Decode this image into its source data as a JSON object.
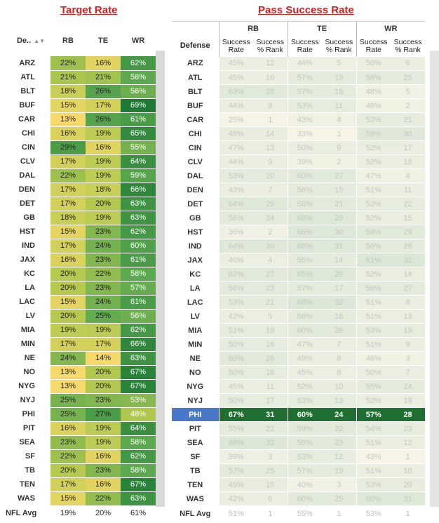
{
  "titles": {
    "target": "Target Rate",
    "pass": "Pass Success Rate"
  },
  "left_headers": {
    "defense": "De..",
    "rb": "RB",
    "te": "TE",
    "wr": "WR"
  },
  "right_headers": {
    "defense": "Defense",
    "groups": [
      "RB",
      "TE",
      "WR"
    ],
    "sub1": "Success\nRate",
    "sub2": "Success\n% Rank"
  },
  "colors": {
    "target_scale": [
      "#f6d96a",
      "#b5c94e",
      "#5aa84f",
      "#1e7a34"
    ],
    "pass_scale": [
      "#f7f4e6",
      "#dbe8d6",
      "#1f6e32"
    ],
    "highlight_team": "#4a78c9"
  },
  "chart_data": [
    {
      "type": "table",
      "title": "Target Rate",
      "columns": [
        "De..",
        "RB",
        "TE",
        "WR"
      ],
      "rows": [
        [
          "ARZ",
          "22%",
          "16%",
          "62%"
        ],
        [
          "ATL",
          "21%",
          "21%",
          "58%"
        ],
        [
          "BLT",
          "18%",
          "26%",
          "56%"
        ],
        [
          "BUF",
          "15%",
          "17%",
          "69%"
        ],
        [
          "CAR",
          "13%",
          "26%",
          "61%"
        ],
        [
          "CHI",
          "16%",
          "19%",
          "65%"
        ],
        [
          "CIN",
          "29%",
          "16%",
          "55%"
        ],
        [
          "CLV",
          "17%",
          "19%",
          "64%"
        ],
        [
          "DAL",
          "22%",
          "19%",
          "59%"
        ],
        [
          "DEN",
          "17%",
          "18%",
          "66%"
        ],
        [
          "DET",
          "17%",
          "20%",
          "63%"
        ],
        [
          "GB",
          "18%",
          "19%",
          "63%"
        ],
        [
          "HST",
          "15%",
          "23%",
          "62%"
        ],
        [
          "IND",
          "17%",
          "24%",
          "60%"
        ],
        [
          "JAX",
          "16%",
          "23%",
          "61%"
        ],
        [
          "KC",
          "20%",
          "22%",
          "58%"
        ],
        [
          "LA",
          "20%",
          "23%",
          "57%"
        ],
        [
          "LAC",
          "15%",
          "24%",
          "61%"
        ],
        [
          "LV",
          "20%",
          "25%",
          "56%"
        ],
        [
          "MIA",
          "19%",
          "19%",
          "62%"
        ],
        [
          "MIN",
          "17%",
          "17%",
          "66%"
        ],
        [
          "NE",
          "24%",
          "14%",
          "63%"
        ],
        [
          "NO",
          "13%",
          "20%",
          "67%"
        ],
        [
          "NYG",
          "13%",
          "20%",
          "67%"
        ],
        [
          "NYJ",
          "25%",
          "23%",
          "53%"
        ],
        [
          "PHI",
          "25%",
          "27%",
          "48%"
        ],
        [
          "PIT",
          "16%",
          "19%",
          "64%"
        ],
        [
          "SEA",
          "23%",
          "19%",
          "58%"
        ],
        [
          "SF",
          "22%",
          "16%",
          "62%"
        ],
        [
          "TB",
          "20%",
          "23%",
          "58%"
        ],
        [
          "TEN",
          "17%",
          "16%",
          "67%"
        ],
        [
          "WAS",
          "15%",
          "22%",
          "63%"
        ]
      ],
      "footer": [
        "NFL Avg",
        "19%",
        "20%",
        "61%"
      ]
    },
    {
      "type": "table",
      "title": "Pass Success Rate",
      "groups": [
        "RB",
        "TE",
        "WR"
      ],
      "columns": [
        "Defense",
        "Success Rate",
        "Success % Rank",
        "Success Rate",
        "Success % Rank",
        "Success Rate",
        "Success % Rank"
      ],
      "highlight": "PHI",
      "rows": [
        [
          "ARZ",
          "45%",
          "12",
          "44%",
          "5",
          "50%",
          "6"
        ],
        [
          "ATL",
          "45%",
          "10",
          "57%",
          "19",
          "56%",
          "25"
        ],
        [
          "BLT",
          "63%",
          "28",
          "57%",
          "18",
          "48%",
          "5"
        ],
        [
          "BUF",
          "44%",
          "8",
          "53%",
          "11",
          "46%",
          "2"
        ],
        [
          "CAR",
          "25%",
          "1",
          "43%",
          "4",
          "53%",
          "21"
        ],
        [
          "CHI",
          "49%",
          "14",
          "33%",
          "1",
          "59%",
          "30"
        ],
        [
          "CIN",
          "47%",
          "13",
          "50%",
          "9",
          "52%",
          "17"
        ],
        [
          "CLV",
          "44%",
          "9",
          "39%",
          "2",
          "52%",
          "16"
        ],
        [
          "DAL",
          "53%",
          "20",
          "60%",
          "27",
          "47%",
          "4"
        ],
        [
          "DEN",
          "43%",
          "7",
          "56%",
          "15",
          "51%",
          "11"
        ],
        [
          "DET",
          "64%",
          "29",
          "58%",
          "21",
          "53%",
          "22"
        ],
        [
          "GB",
          "56%",
          "24",
          "66%",
          "29",
          "52%",
          "15"
        ],
        [
          "HST",
          "36%",
          "2",
          "66%",
          "30",
          "58%",
          "29"
        ],
        [
          "IND",
          "64%",
          "30",
          "66%",
          "31",
          "56%",
          "26"
        ],
        [
          "JAX",
          "40%",
          "4",
          "55%",
          "14",
          "61%",
          "32"
        ],
        [
          "KC",
          "62%",
          "27",
          "65%",
          "28",
          "52%",
          "14"
        ],
        [
          "LA",
          "56%",
          "23",
          "57%",
          "17",
          "56%",
          "27"
        ],
        [
          "LAC",
          "53%",
          "21",
          "68%",
          "32",
          "51%",
          "8"
        ],
        [
          "LV",
          "42%",
          "5",
          "56%",
          "16",
          "51%",
          "13"
        ],
        [
          "MIA",
          "51%",
          "19",
          "60%",
          "26",
          "53%",
          "19"
        ],
        [
          "MIN",
          "50%",
          "16",
          "47%",
          "7",
          "51%",
          "9"
        ],
        [
          "NE",
          "60%",
          "26",
          "49%",
          "8",
          "46%",
          "3"
        ],
        [
          "NO",
          "50%",
          "18",
          "45%",
          "6",
          "50%",
          "7"
        ],
        [
          "NYG",
          "45%",
          "11",
          "52%",
          "10",
          "55%",
          "24"
        ],
        [
          "NYJ",
          "50%",
          "17",
          "53%",
          "13",
          "52%",
          "18"
        ],
        [
          "PHI",
          "67%",
          "31",
          "60%",
          "24",
          "57%",
          "28"
        ],
        [
          "PIT",
          "55%",
          "22",
          "59%",
          "22",
          "54%",
          "23"
        ],
        [
          "SEA",
          "69%",
          "32",
          "59%",
          "23",
          "51%",
          "12"
        ],
        [
          "SF",
          "39%",
          "3",
          "53%",
          "12",
          "43%",
          "1"
        ],
        [
          "TB",
          "57%",
          "25",
          "57%",
          "19",
          "51%",
          "10"
        ],
        [
          "TEN",
          "49%",
          "15",
          "40%",
          "3",
          "53%",
          "20"
        ],
        [
          "WAS",
          "42%",
          "6",
          "60%",
          "25",
          "60%",
          "31"
        ]
      ],
      "footer": [
        "NFL Avg",
        "51%",
        "1",
        "55%",
        "1",
        "53%",
        "1"
      ]
    }
  ]
}
